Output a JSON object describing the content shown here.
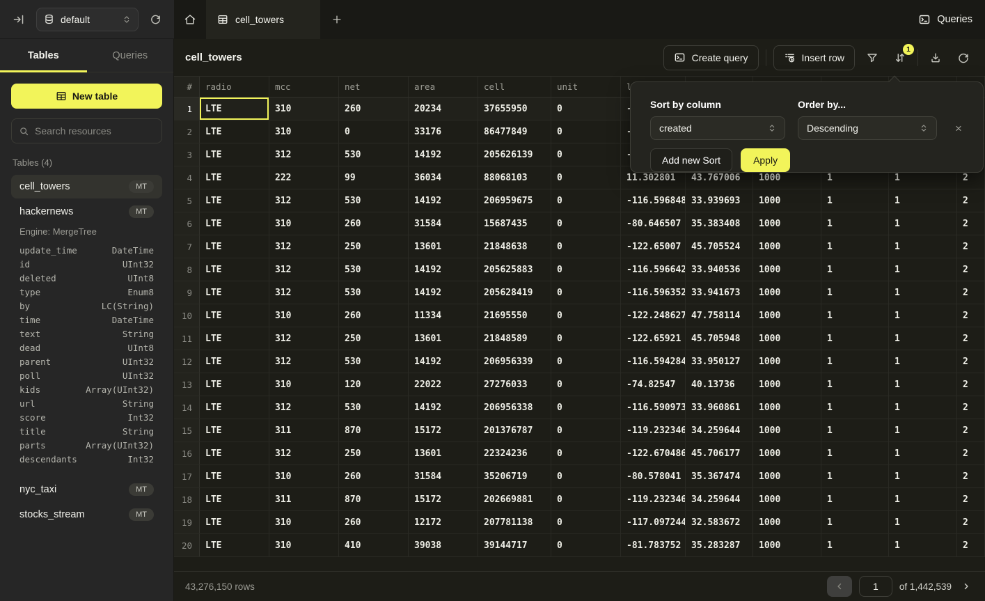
{
  "colors": {
    "accent": "#F2F45A",
    "background": "#1D1D17",
    "sidebar": "#262626"
  },
  "topbar": {
    "database": "default",
    "active_tab": "cell_towers",
    "queries_label": "Queries"
  },
  "sidebar": {
    "tab_tables": "Tables",
    "tab_queries": "Queries",
    "new_table": "New table",
    "search_placeholder": "Search resources",
    "section": "Tables (4)",
    "cell_towers": {
      "name": "cell_towers",
      "badge": "MT"
    },
    "hackernews": {
      "name": "hackernews",
      "badge": "MT",
      "engine": "Engine: MergeTree",
      "schema": [
        {
          "name": "update_time",
          "type": "DateTime"
        },
        {
          "name": "id",
          "type": "UInt32"
        },
        {
          "name": "deleted",
          "type": "UInt8"
        },
        {
          "name": "type",
          "type": "Enum8"
        },
        {
          "name": "by",
          "type": "LC(String)"
        },
        {
          "name": "time",
          "type": "DateTime"
        },
        {
          "name": "text",
          "type": "String"
        },
        {
          "name": "dead",
          "type": "UInt8"
        },
        {
          "name": "parent",
          "type": "UInt32"
        },
        {
          "name": "poll",
          "type": "UInt32"
        },
        {
          "name": "kids",
          "type": "Array(UInt32)"
        },
        {
          "name": "url",
          "type": "String"
        },
        {
          "name": "score",
          "type": "Int32"
        },
        {
          "name": "title",
          "type": "String"
        },
        {
          "name": "parts",
          "type": "Array(UInt32)"
        },
        {
          "name": "descendants",
          "type": "Int32"
        }
      ]
    },
    "nyc_taxi": {
      "name": "nyc_taxi",
      "badge": "MT"
    },
    "stocks_stream": {
      "name": "stocks_stream",
      "badge": "MT"
    }
  },
  "main": {
    "title": "cell_towers",
    "toolbar": {
      "create_query": "Create query",
      "insert_row": "Insert row",
      "sort_badge": "1"
    }
  },
  "table": {
    "headers": [
      "#",
      "radio",
      "mcc",
      "net",
      "area",
      "cell",
      "unit",
      "lo",
      "",
      "",
      "",
      "",
      ""
    ],
    "rows": [
      [
        "LTE",
        "310",
        "260",
        "20234",
        "37655950",
        "0",
        "-7",
        "",
        "",
        "",
        "",
        ""
      ],
      [
        "LTE",
        "310",
        "0",
        "33176",
        "86477849",
        "0",
        "-8",
        "",
        "",
        "",
        "",
        ""
      ],
      [
        "LTE",
        "312",
        "530",
        "14192",
        "205626139",
        "0",
        "-1",
        "",
        "",
        "",
        "",
        ""
      ],
      [
        "LTE",
        "222",
        "99",
        "36034",
        "88068103",
        "0",
        "11.302801",
        "43.767006",
        "1000",
        "1",
        "1",
        "2"
      ],
      [
        "LTE",
        "312",
        "530",
        "14192",
        "206959675",
        "0",
        "-116.596848",
        "33.939693",
        "1000",
        "1",
        "1",
        "2"
      ],
      [
        "LTE",
        "310",
        "260",
        "31584",
        "15687435",
        "0",
        "-80.646507",
        "35.383408",
        "1000",
        "1",
        "1",
        "2"
      ],
      [
        "LTE",
        "312",
        "250",
        "13601",
        "21848638",
        "0",
        "-122.65007",
        "45.705524",
        "1000",
        "1",
        "1",
        "2"
      ],
      [
        "LTE",
        "312",
        "530",
        "14192",
        "205625883",
        "0",
        "-116.596642",
        "33.940536",
        "1000",
        "1",
        "1",
        "2"
      ],
      [
        "LTE",
        "312",
        "530",
        "14192",
        "205628419",
        "0",
        "-116.596352",
        "33.941673",
        "1000",
        "1",
        "1",
        "2"
      ],
      [
        "LTE",
        "310",
        "260",
        "11334",
        "21695550",
        "0",
        "-122.248627",
        "47.758114",
        "1000",
        "1",
        "1",
        "2"
      ],
      [
        "LTE",
        "312",
        "250",
        "13601",
        "21848589",
        "0",
        "-122.65921",
        "45.705948",
        "1000",
        "1",
        "1",
        "2"
      ],
      [
        "LTE",
        "312",
        "530",
        "14192",
        "206956339",
        "0",
        "-116.594284",
        "33.950127",
        "1000",
        "1",
        "1",
        "2"
      ],
      [
        "LTE",
        "310",
        "120",
        "22022",
        "27276033",
        "0",
        "-74.82547",
        "40.13736",
        "1000",
        "1",
        "1",
        "2"
      ],
      [
        "LTE",
        "312",
        "530",
        "14192",
        "206956338",
        "0",
        "-116.590973",
        "33.960861",
        "1000",
        "1",
        "1",
        "2"
      ],
      [
        "LTE",
        "311",
        "870",
        "15172",
        "201376787",
        "0",
        "-119.232346",
        "34.259644",
        "1000",
        "1",
        "1",
        "2"
      ],
      [
        "LTE",
        "312",
        "250",
        "13601",
        "22324236",
        "0",
        "-122.670486",
        "45.706177",
        "1000",
        "1",
        "1",
        "2"
      ],
      [
        "LTE",
        "310",
        "260",
        "31584",
        "35206719",
        "0",
        "-80.578041",
        "35.367474",
        "1000",
        "1",
        "1",
        "2"
      ],
      [
        "LTE",
        "311",
        "870",
        "15172",
        "202669881",
        "0",
        "-119.232346",
        "34.259644",
        "1000",
        "1",
        "1",
        "2"
      ],
      [
        "LTE",
        "310",
        "260",
        "12172",
        "207781138",
        "0",
        "-117.097244",
        "32.583672",
        "1000",
        "1",
        "1",
        "2"
      ],
      [
        "LTE",
        "310",
        "410",
        "39038",
        "39144717",
        "0",
        "-81.783752",
        "35.283287",
        "1000",
        "1",
        "1",
        "2"
      ]
    ]
  },
  "sort_popup": {
    "column_label": "Sort by column",
    "order_label": "Order by...",
    "column_value": "created",
    "order_value": "Descending",
    "close": "×",
    "add_button": "Add new Sort",
    "apply_button": "Apply"
  },
  "footer": {
    "rows_label": "43,276,150 rows",
    "page": "1",
    "of_label": "of 1,442,539"
  }
}
